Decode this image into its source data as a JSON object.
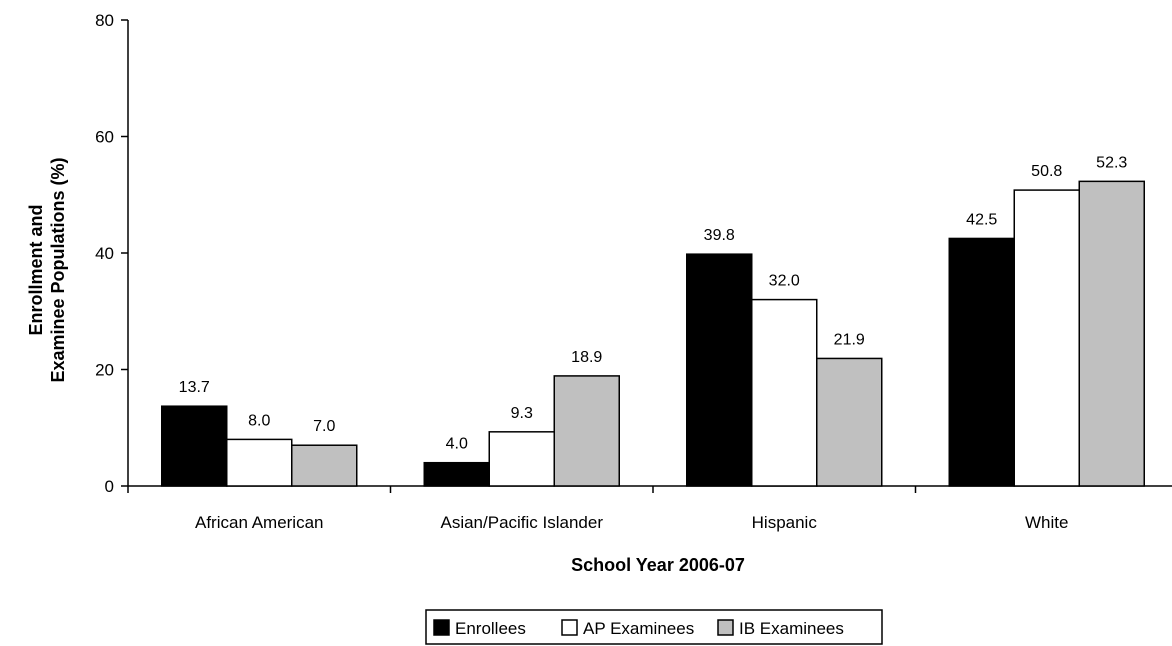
{
  "chart_data": {
    "type": "bar",
    "title": "",
    "xlabel": "School Year 2006-07",
    "ylabel_lines": [
      "Enrollment and",
      "Examinee Populations (%)"
    ],
    "ylim": [
      0,
      80
    ],
    "yticks": [
      0,
      20,
      40,
      60,
      80
    ],
    "grid": false,
    "legend_position": "bottom",
    "categories": [
      "African American",
      "Asian/Pacific Islander",
      "Hispanic",
      "White"
    ],
    "series": [
      {
        "name": "Enrollees",
        "color": "#000000",
        "values": [
          13.7,
          4.0,
          39.8,
          42.5
        ],
        "labels": [
          "13.7",
          "4.0",
          "39.8",
          "42.5"
        ]
      },
      {
        "name": "AP Examinees",
        "color": "#ffffff",
        "values": [
          8.0,
          9.3,
          32.0,
          50.8
        ],
        "labels": [
          "8.0",
          "9.3",
          "32.0",
          "50.8"
        ]
      },
      {
        "name": "IB Examinees",
        "color": "#c0c0c0",
        "values": [
          7.0,
          18.9,
          21.9,
          52.3
        ],
        "labels": [
          "7.0",
          "18.9",
          "21.9",
          "52.3"
        ]
      }
    ]
  }
}
